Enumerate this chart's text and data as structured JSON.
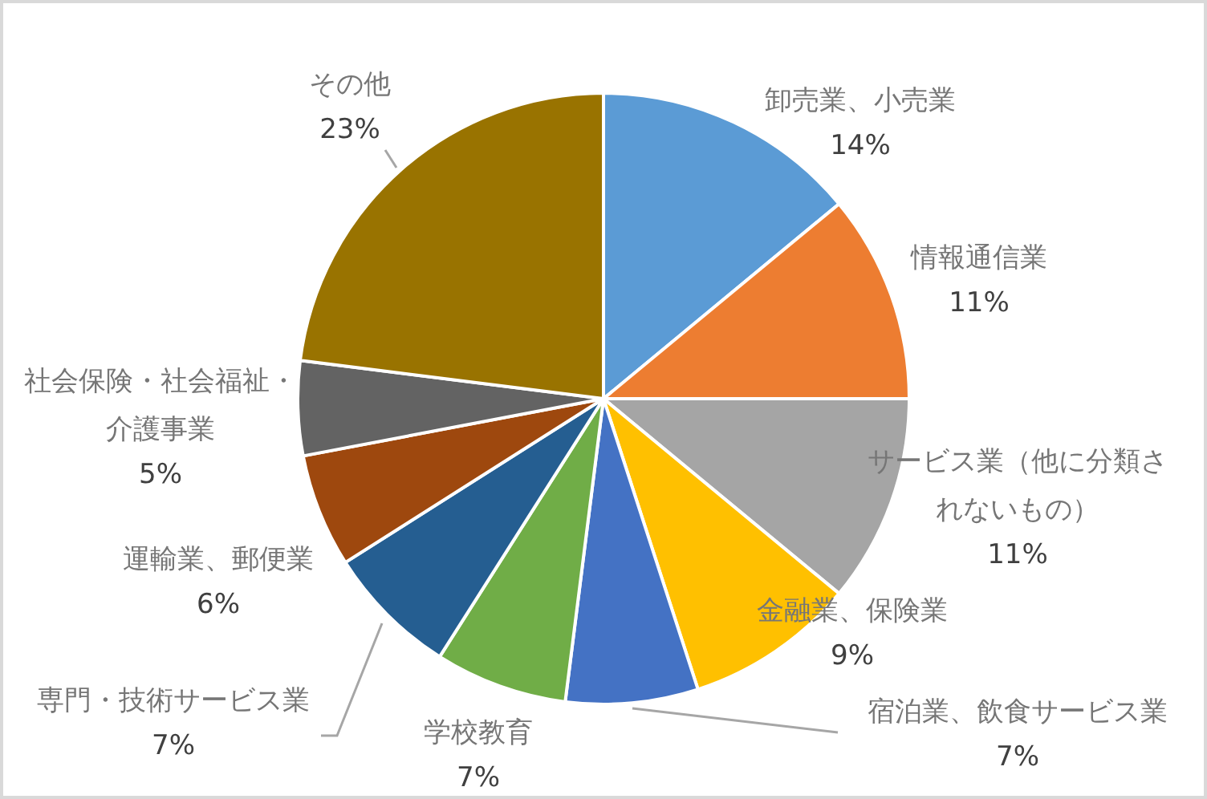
{
  "chart_data": {
    "type": "pie",
    "categories": [
      "卸売業、小売業",
      "情報通信業",
      "サービス業（他に分類されないもの）",
      "金融業、保険業",
      "宿泊業、飲食サービス業",
      "学校教育",
      "専門・技術サービス業",
      "運輸業、郵便業",
      "社会保険・社会福祉・介護事業",
      "その他"
    ],
    "values": [
      14,
      11,
      11,
      9,
      7,
      7,
      7,
      6,
      5,
      23
    ],
    "value_labels": [
      "14%",
      "11%",
      "11%",
      "9%",
      "7%",
      "7%",
      "7%",
      "6%",
      "5%",
      "23%"
    ],
    "colors": [
      "#5b9bd5",
      "#ed7d31",
      "#a5a5a5",
      "#ffc000",
      "#4472c4",
      "#70ad47",
      "#255e91",
      "#9e480e",
      "#636363",
      "#997300"
    ]
  }
}
